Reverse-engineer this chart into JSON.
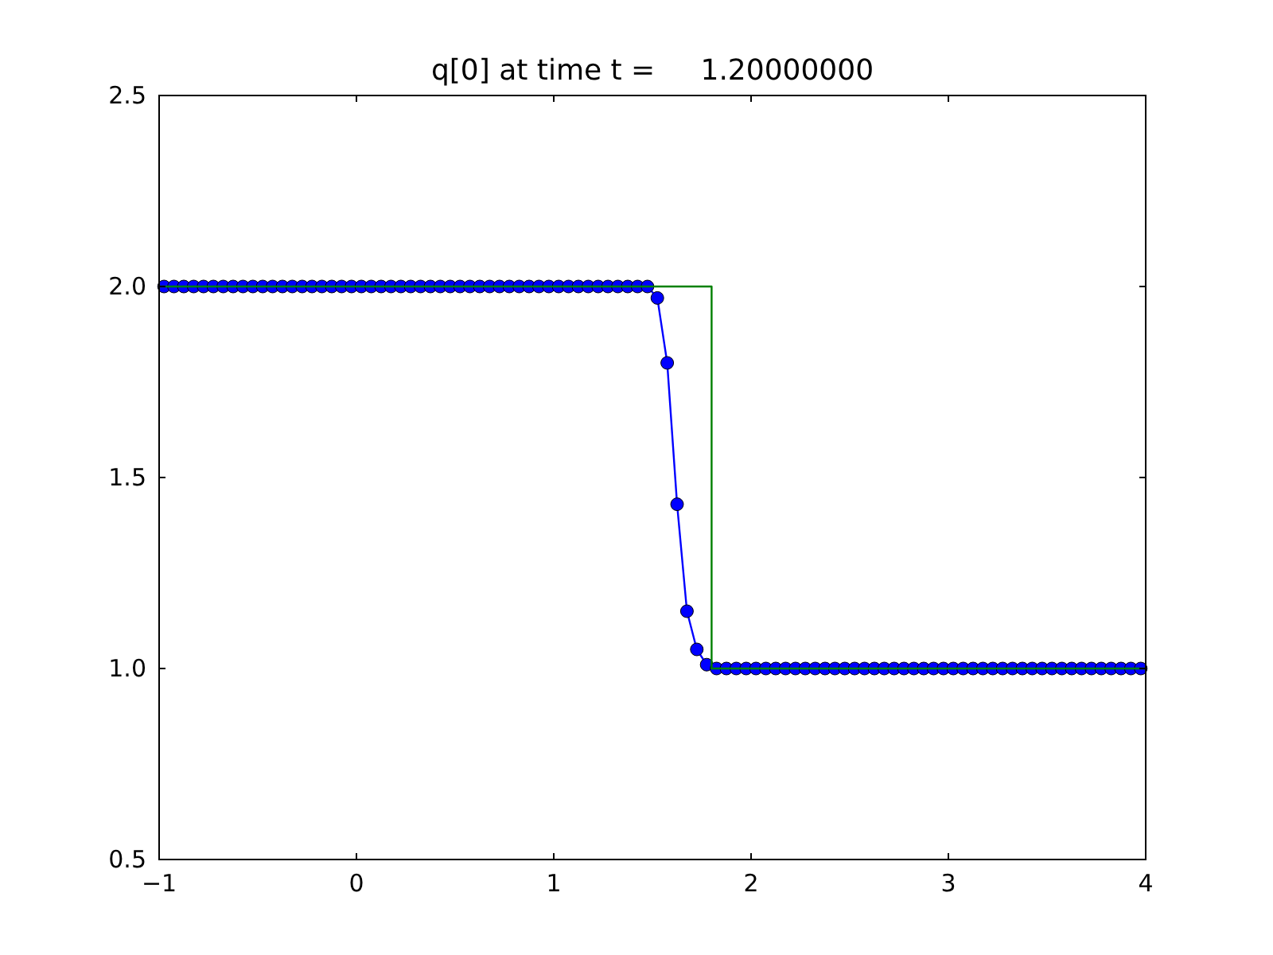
{
  "chart_data": {
    "type": "line",
    "title": "q[0] at time t =     1.20000000",
    "xlim": [
      -1,
      4
    ],
    "xticks": [
      {
        "value": -1,
        "label": "−1"
      },
      0,
      1,
      2,
      3,
      4
    ],
    "ylim": [
      0.5,
      2.5
    ],
    "yticks": [
      {
        "value": 0.5,
        "label": "0.5"
      },
      {
        "value": 1,
        "label": "1.0"
      },
      {
        "value": 1.5,
        "label": "1.5"
      },
      {
        "value": 2,
        "label": "2.0"
      },
      {
        "value": 2.5,
        "label": "2.5"
      }
    ],
    "series": [
      {
        "color": "#0000ff",
        "marker": "circle",
        "x": [
          -0.975,
          -0.925,
          -0.875,
          -0.825,
          -0.775,
          -0.725,
          -0.675,
          -0.625,
          -0.575,
          -0.525,
          -0.475,
          -0.425,
          -0.375,
          -0.325,
          -0.275,
          -0.225,
          -0.175,
          -0.125,
          -0.075,
          -0.025,
          0.025,
          0.075,
          0.125,
          0.175,
          0.225,
          0.275,
          0.325,
          0.375,
          0.425,
          0.475,
          0.525,
          0.575,
          0.625,
          0.675,
          0.725,
          0.775,
          0.825,
          0.875,
          0.925,
          0.975,
          1.025,
          1.075,
          1.125,
          1.175,
          1.225,
          1.275,
          1.325,
          1.375,
          1.425,
          1.475,
          1.525,
          1.575,
          1.625,
          1.675,
          1.725,
          1.775,
          1.825,
          1.875,
          1.925,
          1.975,
          2.025,
          2.075,
          2.125,
          2.175,
          2.225,
          2.275,
          2.325,
          2.375,
          2.425,
          2.475,
          2.525,
          2.575,
          2.625,
          2.675,
          2.725,
          2.775,
          2.825,
          2.875,
          2.925,
          2.975,
          3.025,
          3.075,
          3.125,
          3.175,
          3.225,
          3.275,
          3.325,
          3.375,
          3.425,
          3.475,
          3.525,
          3.575,
          3.625,
          3.675,
          3.725,
          3.775,
          3.825,
          3.875,
          3.925,
          3.975
        ],
        "values": [
          2,
          2,
          2,
          2,
          2,
          2,
          2,
          2,
          2,
          2,
          2,
          2,
          2,
          2,
          2,
          2,
          2,
          2,
          2,
          2,
          2,
          2,
          2,
          2,
          2,
          2,
          2,
          2,
          2,
          2,
          2,
          2,
          2,
          2,
          2,
          2,
          2,
          2,
          2,
          2,
          2,
          2,
          2,
          2,
          2,
          2,
          2,
          2,
          2,
          2,
          1.97,
          1.8,
          1.43,
          1.15,
          1.05,
          1.01,
          1,
          1,
          1,
          1,
          1,
          1,
          1,
          1,
          1,
          1,
          1,
          1,
          1,
          1,
          1,
          1,
          1,
          1,
          1,
          1,
          1,
          1,
          1,
          1,
          1,
          1,
          1,
          1,
          1,
          1,
          1,
          1,
          1,
          1,
          1,
          1,
          1,
          1,
          1,
          1,
          1,
          1,
          1,
          1
        ]
      },
      {
        "color": "#008000",
        "marker": "none",
        "x": [
          -1,
          1.8,
          1.8,
          4
        ],
        "values": [
          2,
          2,
          1,
          1
        ]
      }
    ]
  }
}
